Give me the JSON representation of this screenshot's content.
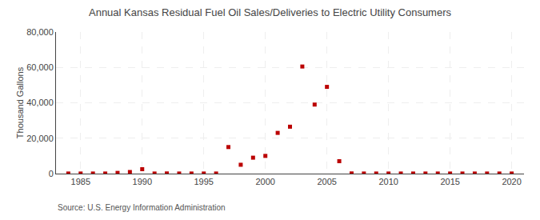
{
  "chart_data": {
    "type": "scatter",
    "title": "Annual Kansas Residual Fuel Oil Sales/Deliveries to Electric Utility Consumers",
    "ylabel": "Thousand Gallons",
    "annotation": "Source: U.S. Energy Information Administration",
    "x": [
      1984,
      1985,
      1986,
      1987,
      1988,
      1989,
      1990,
      1991,
      1992,
      1993,
      1994,
      1995,
      1996,
      1997,
      1998,
      1999,
      2000,
      2001,
      2002,
      2003,
      2004,
      2005,
      2006,
      2007,
      2008,
      2009,
      2010,
      2011,
      2012,
      2013,
      2014,
      2015,
      2016,
      2017,
      2018,
      2019,
      2020
    ],
    "values": [
      50,
      50,
      50,
      50,
      400,
      900,
      2500,
      50,
      100,
      50,
      50,
      50,
      50,
      15000,
      5000,
      9000,
      10000,
      23000,
      26500,
      60500,
      39000,
      49000,
      7000,
      100,
      50,
      50,
      50,
      50,
      50,
      50,
      50,
      50,
      50,
      50,
      50,
      50,
      50
    ],
    "color": "#bb0000",
    "marker": "square",
    "xlim": [
      1983,
      2021
    ],
    "xticks": [
      1985,
      1990,
      1995,
      2000,
      2005,
      2010,
      2015,
      2020
    ],
    "ylim": [
      0,
      80000
    ],
    "yticks": [
      0,
      {
        "value": 20000,
        "label": "20,000"
      },
      {
        "value": 40000,
        "label": "40,000"
      },
      {
        "value": 60000,
        "label": "60,000"
      },
      {
        "value": 80000,
        "label": "80,000"
      }
    ],
    "grid": true
  }
}
